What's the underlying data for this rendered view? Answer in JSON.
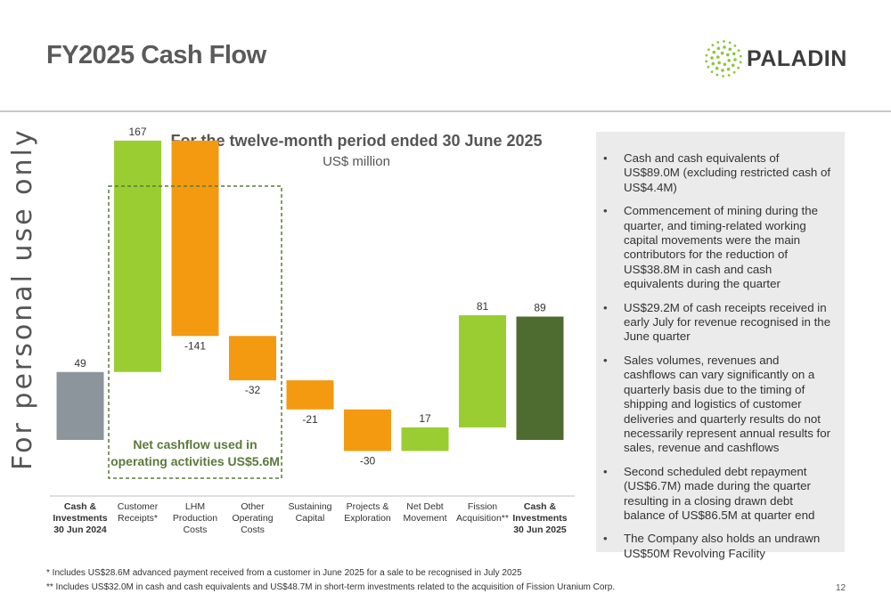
{
  "header": {
    "title": "FY2025 Cash Flow",
    "logo_text": "PALADIN"
  },
  "watermark": "For personal use only",
  "chart_data": {
    "type": "waterfall",
    "title": "For the twelve-month period ended 30 June 2025",
    "subtitle": "US$ million",
    "categories": [
      "Cash & Investments 30 Jun 2024",
      "Customer Receipts*",
      "LHM Production Costs",
      "Other Operating Costs",
      "Sustaining Capital",
      "Projects & Exploration",
      "Net Debt Movement",
      "Fission Acquisition**",
      "Cash & Investments 30 Jun 2025"
    ],
    "category_lines": [
      [
        "Cash &",
        "Investments",
        "30 Jun 2024"
      ],
      [
        "Customer",
        "Receipts*"
      ],
      [
        "LHM",
        "Production",
        "Costs"
      ],
      [
        "Other",
        "Operating",
        "Costs"
      ],
      [
        "Sustaining",
        "Capital"
      ],
      [
        "Projects &",
        "Exploration"
      ],
      [
        "Net Debt",
        "Movement"
      ],
      [
        "Fission",
        "Acquisition**"
      ],
      [
        "Cash &",
        "Investments",
        "30 Jun 2025"
      ]
    ],
    "bold_categories": [
      0,
      8
    ],
    "values": [
      49,
      167,
      -141,
      -32,
      -21,
      -30,
      17,
      81,
      89
    ],
    "labels": [
      "49",
      "167",
      "-141",
      "-32",
      "-21",
      "-30",
      "17",
      "81",
      "89"
    ],
    "bar_kinds": [
      "total",
      "increase",
      "decrease",
      "decrease",
      "decrease",
      "decrease",
      "increase",
      "increase",
      "total"
    ],
    "colors": {
      "opening_total": "#8c949c",
      "increase": "#9acd32",
      "decrease": "#f39a10",
      "closing_total": "#4e6b30"
    },
    "callout": {
      "text_lines": [
        "Net cashflow used in",
        "operating activities US$5.6M"
      ],
      "categories_covered": [
        1,
        3
      ],
      "color": "#5a7a3a"
    },
    "grid": false,
    "legend": "none"
  },
  "panel": {
    "bullets": [
      "Cash and cash equivalents of US$89.0M (excluding restricted cash of US$4.4M)",
      "Commencement of mining during the quarter, and timing-related working capital movements were the main contributors for the reduction of US$38.8M in cash and cash equivalents during the quarter",
      "US$29.2M of cash receipts received in early July for revenue recognised in the June quarter",
      "Sales volumes, revenues and cashflows can vary significantly on a quarterly basis due to the timing of shipping and logistics of customer deliveries and quarterly results do not necessarily represent annual results for sales, revenue and cashflows",
      "Second scheduled debt repayment (US$6.7M) made during the quarter resulting in a closing drawn debt balance of US$86.5M at quarter end",
      "The Company also holds an undrawn US$50M Revolving Facility"
    ]
  },
  "footnotes": [
    "* Includes US$28.6M advanced payment received from a customer in June 2025 for a sale to be recognised in July 2025",
    "** Includes US$32.0M in cash and cash equivalents and US$48.7M in short-term investments related to the acquisition of Fission Uranium Corp."
  ],
  "page_number": "12"
}
